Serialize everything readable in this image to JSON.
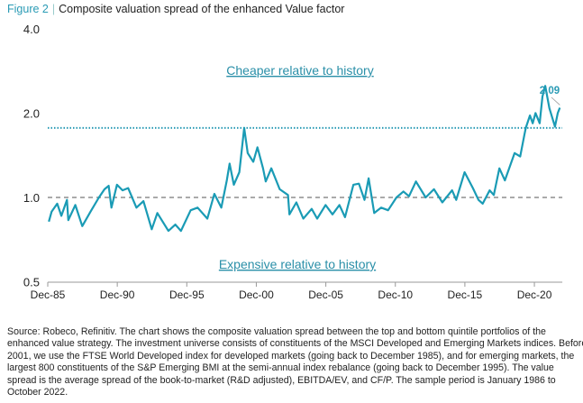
{
  "figure_label": "Figure 2",
  "figure_separator": "|",
  "chart_data": {
    "type": "line",
    "title": "Composite valuation spread of the enhanced Value factor",
    "y_scale": "log",
    "ylim": [
      0.5,
      4.0
    ],
    "y_ticks": [
      {
        "value": 0.5,
        "label": "0.5"
      },
      {
        "value": 1.0,
        "label": "1.0"
      },
      {
        "value": 2.0,
        "label": "2.0"
      },
      {
        "value": 4.0,
        "label": "4.0"
      }
    ],
    "x_ticks": [
      {
        "value": 1985.92,
        "label": "Dec-85"
      },
      {
        "value": 1990.92,
        "label": "Dec-90"
      },
      {
        "value": 1995.92,
        "label": "Dec-95"
      },
      {
        "value": 2000.92,
        "label": "Dec-00"
      },
      {
        "value": 2005.92,
        "label": "Dec-05"
      },
      {
        "value": 2010.92,
        "label": "Dec-10"
      },
      {
        "value": 2015.92,
        "label": "Dec-15"
      },
      {
        "value": 2020.92,
        "label": "Dec-20"
      }
    ],
    "xlim": [
      1985.92,
      2022.8
    ],
    "grid": false,
    "line_color": "#1a9bb5",
    "reference_lines": [
      {
        "value": 1.77,
        "style": "dotted",
        "color": "#2a9bb5"
      },
      {
        "value": 1.0,
        "style": "dashed",
        "color": "#aaaaaa"
      }
    ],
    "annotations": [
      {
        "text": "Cheaper relative to history",
        "color": "#2a8fa8"
      },
      {
        "text": "Expensive relative to history",
        "color": "#2a8fa8"
      },
      {
        "text": "2.09",
        "x": 2022.75,
        "y": 2.09,
        "color": "#2a9bb5"
      }
    ],
    "series": [
      {
        "x": [
          1986.0,
          1986.2,
          1986.6,
          1986.9,
          1987.3,
          1987.4,
          1987.9,
          1988.4,
          1989.0,
          1989.6,
          1990.0,
          1990.3,
          1990.5,
          1990.9,
          1991.3,
          1991.7,
          1992.3,
          1992.8,
          1993.4,
          1993.8,
          1994.6,
          1995.1,
          1995.5,
          1996.2,
          1996.7,
          1997.4,
          1997.9,
          1998.4,
          1998.8,
          1999.0,
          1999.3,
          1999.7,
          2000.05,
          2000.3,
          2000.7,
          2001.0,
          2001.4,
          2001.6,
          2002.0,
          2002.6,
          2003.2,
          2003.3,
          2003.8,
          2004.3,
          2004.9,
          2005.3,
          2005.9,
          2006.4,
          2006.9,
          2007.3,
          2007.9,
          2008.3,
          2008.7,
          2009.0,
          2009.4,
          2009.9,
          2010.4,
          2011.0,
          2011.5,
          2011.9,
          2012.4,
          2013.1,
          2013.7,
          2014.3,
          2015.0,
          2015.3,
          2015.9,
          2016.5,
          2016.9,
          2017.2,
          2017.7,
          2018.0,
          2018.4,
          2018.8,
          2019.5,
          2019.9,
          2020.2,
          2020.3,
          2020.6,
          2020.8,
          2021.0,
          2021.3,
          2021.5,
          2021.7,
          2022.0,
          2022.4,
          2022.6,
          2022.75
        ],
        "values": [
          0.82,
          0.89,
          0.95,
          0.86,
          0.98,
          0.83,
          0.94,
          0.79,
          0.89,
          1.0,
          1.07,
          1.1,
          0.92,
          1.11,
          1.06,
          1.08,
          0.92,
          0.97,
          0.77,
          0.88,
          0.76,
          0.8,
          0.76,
          0.9,
          0.92,
          0.84,
          1.03,
          0.92,
          1.15,
          1.32,
          1.11,
          1.23,
          1.77,
          1.44,
          1.34,
          1.51,
          1.27,
          1.14,
          1.27,
          1.07,
          1.02,
          0.87,
          0.96,
          0.84,
          0.91,
          0.84,
          0.94,
          0.87,
          0.94,
          0.85,
          1.11,
          1.12,
          0.98,
          1.17,
          0.88,
          0.92,
          0.9,
          1.0,
          1.05,
          1.01,
          1.14,
          1.0,
          1.07,
          0.96,
          1.06,
          0.98,
          1.23,
          1.08,
          0.98,
          0.95,
          1.06,
          1.02,
          1.27,
          1.15,
          1.44,
          1.4,
          1.67,
          1.77,
          1.96,
          1.84,
          2.0,
          1.84,
          2.29,
          2.5,
          2.08,
          1.79,
          2.0,
          2.09
        ]
      }
    ]
  },
  "footnote_lines": [
    "Source: Robeco, Refinitiv. The chart shows the composite valuation spread between the top and bottom quintile portfolios of the",
    "enhanced value strategy. The investment universe consists of constituents of the MSCI Developed and Emerging Markets indices. Before",
    "2001, we use the FTSE World Developed index for developed markets (going back to December 1985), and for emerging markets, the",
    "largest 800 constituents of the S&P Emerging BMI at the semi-annual index rebalance (going back to December 1995). The value",
    "spread is the average spread of the book-to-market (R&D adjusted), EBITDA/EV, and CF/P. The sample period is January 1986 to",
    "October 2022."
  ]
}
